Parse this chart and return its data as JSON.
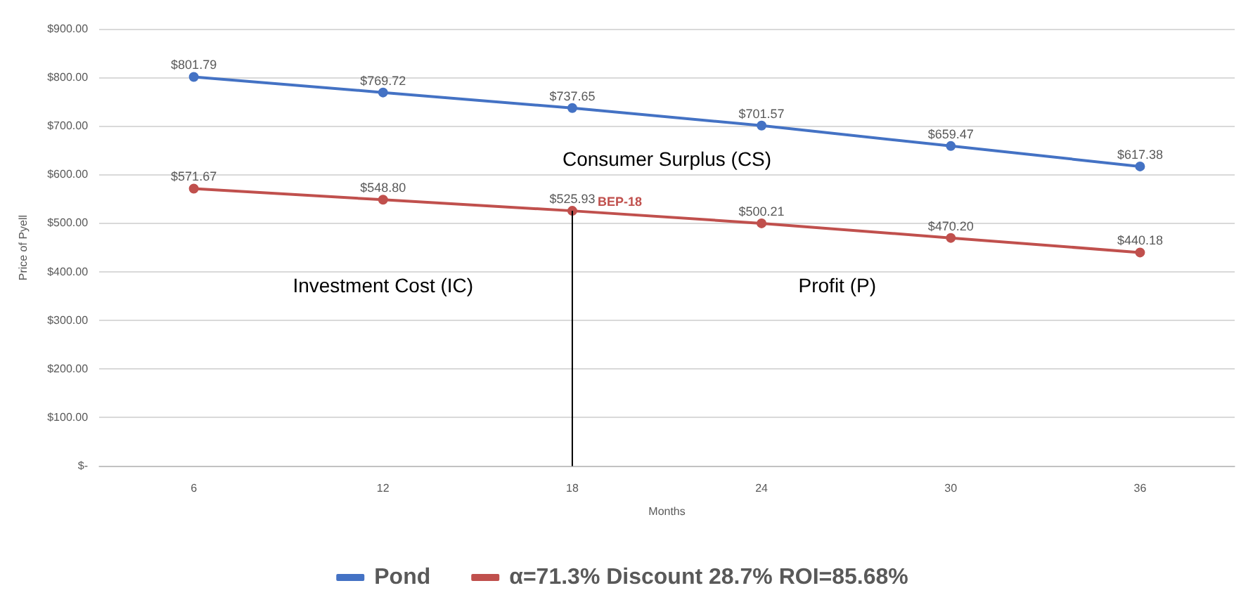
{
  "chart_data": {
    "type": "line",
    "xlabel": "Months",
    "ylabel": "Price of Pyell",
    "categories": [
      "6",
      "12",
      "18",
      "24",
      "30",
      "36"
    ],
    "series": [
      {
        "name": "Pond",
        "color": "#4472c4",
        "values": [
          801.79,
          769.72,
          737.65,
          701.57,
          659.47,
          617.38
        ],
        "value_labels": [
          "$801.79",
          "$769.72",
          "$737.65",
          "$701.57",
          "$659.47",
          "$617.38"
        ]
      },
      {
        "name": "α=71.3% Discount 28.7% ROI=85.68%",
        "color": "#c0504d",
        "values": [
          571.67,
          548.8,
          525.93,
          500.21,
          470.2,
          440.18
        ],
        "value_labels": [
          "$571.67",
          "$548.80",
          "$525.93",
          "$500.21",
          "$470.20",
          "$440.18"
        ]
      }
    ],
    "ylim": [
      0,
      900
    ],
    "yticks": [
      {
        "value": 0,
        "label": "$-"
      },
      {
        "value": 100,
        "label": "$100.00"
      },
      {
        "value": 200,
        "label": "$200.00"
      },
      {
        "value": 300,
        "label": "$300.00"
      },
      {
        "value": 400,
        "label": "$400.00"
      },
      {
        "value": 500,
        "label": "$500.00"
      },
      {
        "value": 600,
        "label": "$600.00"
      },
      {
        "value": 700,
        "label": "$700.00"
      },
      {
        "value": 800,
        "label": "$800.00"
      },
      {
        "value": 900,
        "label": "$900.00"
      }
    ],
    "ref_lines": [
      {
        "axis": "x",
        "value": "18",
        "color": "#000000"
      }
    ],
    "annotations": [
      {
        "text": "BEP-18",
        "x": "18",
        "y": 525.93
      },
      "Consumer Surplus (CS)",
      "Investment Cost (IC)",
      "Profit (P)"
    ],
    "grid": "y",
    "legend": "bottom",
    "marker": "circle",
    "line_style": "solid"
  }
}
